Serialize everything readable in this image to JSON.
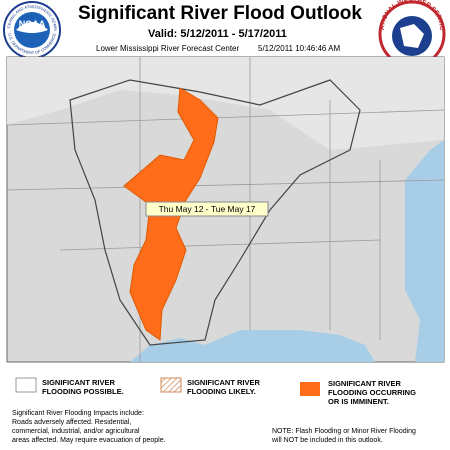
{
  "header": {
    "title": "Significant River Flood Outlook",
    "valid": "Valid: 5/12/2011 - 5/17/2011",
    "center": "Lower Mississippi River Forecast Center",
    "issued": "5/12/2011 10:46:46 AM"
  },
  "logos": {
    "noaa": "NOAA",
    "noaa_ring": "NATIONAL OCEANIC AND ATMOSPHERIC ADMINISTRATION",
    "noaa_ring_bottom": "U.S. DEPARTMENT OF COMMERCE",
    "nws_ring": "NATIONAL WEATHER SERVICE"
  },
  "map": {
    "period_label": "Thu May 12 - Tue May 17"
  },
  "legend": {
    "items": [
      {
        "lines": [
          "SIGNIFICANT RIVER",
          "FLOODING POSSIBLE."
        ]
      },
      {
        "lines": [
          "SIGNIFICANT RIVER",
          "FLOODING LIKELY."
        ]
      },
      {
        "lines": [
          "SIGNIFICANT RIVER",
          "FLOODING OCCURRING",
          "OR IS IMMINENT."
        ]
      }
    ]
  },
  "footer": {
    "impacts": [
      "Significant River Flooding Impacts include:",
      "Roads adversely affected. Residential,",
      "commercial, industrial, and/or agricultural",
      "areas affected. May require evacuation of people."
    ],
    "note": [
      "NOTE: Flash Flooding or Minor River Flooding",
      "will NOT be included in this outlook."
    ]
  }
}
